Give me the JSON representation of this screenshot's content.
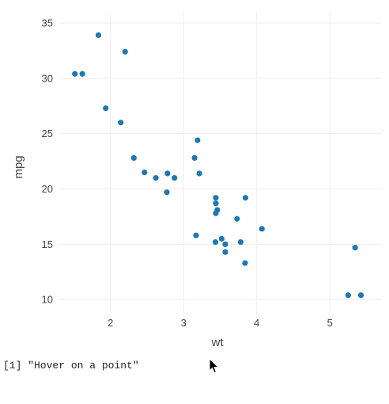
{
  "chart_data": {
    "type": "scatter",
    "xlabel": "wt",
    "ylabel": "mpg",
    "xlim": [
      1.3,
      5.7
    ],
    "ylim": [
      8.8,
      36.0
    ],
    "xticks": [
      2,
      3,
      4,
      5
    ],
    "yticks": [
      10,
      15,
      20,
      25,
      30,
      35
    ],
    "grid": true,
    "marker_color": "#1f77b4",
    "grid_color": "#eeeeee",
    "series": [
      {
        "x": [
          2.62,
          2.875,
          2.32,
          3.215,
          3.44,
          3.46,
          3.57,
          3.19,
          3.15,
          3.44,
          3.44,
          4.07,
          3.73,
          3.78,
          5.25,
          5.424,
          5.345,
          2.2,
          1.615,
          1.835,
          2.465,
          3.52,
          3.435,
          3.84,
          3.845,
          1.935,
          2.14,
          1.513,
          3.17,
          2.77,
          3.57,
          2.78
        ],
        "y": [
          21.0,
          21.0,
          22.8,
          21.4,
          18.7,
          18.1,
          14.3,
          24.4,
          22.8,
          19.2,
          17.8,
          16.4,
          17.3,
          15.2,
          10.4,
          10.4,
          14.7,
          32.4,
          30.4,
          33.9,
          21.5,
          15.5,
          15.2,
          13.3,
          19.2,
          27.3,
          26.0,
          30.4,
          15.8,
          19.7,
          15.0,
          21.4
        ]
      }
    ]
  },
  "console": {
    "output_text": "[1] \"Hover on a point\""
  },
  "icons": {
    "cursor": "mouse-pointer-icon"
  }
}
